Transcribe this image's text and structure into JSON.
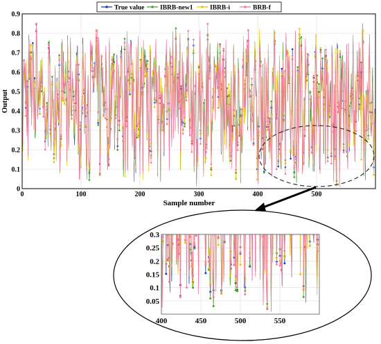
{
  "chart_data": [
    {
      "type": "line",
      "title": "",
      "xlabel": "Sample number",
      "ylabel": "Output",
      "xlim": [
        0,
        600
      ],
      "ylim": [
        0,
        0.9
      ],
      "xticks": [
        0,
        100,
        200,
        300,
        400,
        500
      ],
      "yticks": [
        0,
        0.1,
        0.2,
        0.3,
        0.4,
        0.5,
        0.6,
        0.7,
        0.8,
        0.9
      ],
      "xtick_labels": [
        "0",
        "100",
        "200",
        "300",
        "400",
        "500"
      ],
      "ytick_labels": [
        "0",
        "0.1",
        "0.2",
        "0.3",
        "0.4",
        "0.5",
        "0.6",
        "0.7",
        "0.8",
        "0.9"
      ],
      "grid": true,
      "legend": "top-center",
      "series": [
        {
          "name": "True value",
          "color": "#1f3fb5",
          "samples": [
            [
              0,
              0.22
            ],
            [
              24,
              0.81
            ],
            [
              58,
              0.2
            ],
            [
              110,
              0.07
            ],
            [
              145,
              0.13
            ],
            [
              178,
              0.78
            ],
            [
              205,
              0.09
            ],
            [
              262,
              0.69
            ],
            [
              296,
              0.02
            ],
            [
              315,
              0.79
            ],
            [
              410,
              0.18
            ],
            [
              440,
              0.12
            ],
            [
              476,
              0.09
            ],
            [
              505,
              0.1
            ],
            [
              534,
              0.02
            ],
            [
              578,
              0.82
            ],
            [
              598,
              0.28
            ]
          ]
        },
        {
          "name": "IBRB-new1",
          "color": "#4aa02c",
          "samples": [
            [
              10,
              0.6
            ],
            [
              50,
              0.66
            ],
            [
              100,
              0.74
            ],
            [
              150,
              0.7
            ],
            [
              200,
              0.77
            ],
            [
              250,
              0.7
            ],
            [
              300,
              0.72
            ],
            [
              350,
              0.76
            ],
            [
              400,
              0.74
            ],
            [
              450,
              0.7
            ],
            [
              500,
              0.72
            ],
            [
              550,
              0.76
            ],
            [
              590,
              0.76
            ]
          ]
        },
        {
          "name": "IBRB-i",
          "color": "#e6c800",
          "samples": [
            [
              5,
              0.18
            ],
            [
              40,
              0.14
            ],
            [
              90,
              0.16
            ],
            [
              140,
              0.15
            ],
            [
              190,
              0.12
            ],
            [
              240,
              0.18
            ],
            [
              290,
              0.13
            ],
            [
              340,
              0.17
            ],
            [
              390,
              0.13
            ],
            [
              430,
              0.11
            ],
            [
              470,
              0.13
            ],
            [
              520,
              0.17
            ],
            [
              570,
              0.16
            ]
          ]
        },
        {
          "name": "BRB-f",
          "color": "#f27aa6",
          "samples": [
            [
              15,
              0.3
            ],
            [
              65,
              0.67
            ],
            [
              120,
              0.24
            ],
            [
              170,
              0.68
            ],
            [
              220,
              0.26
            ],
            [
              270,
              0.66
            ],
            [
              320,
              0.24
            ],
            [
              370,
              0.7
            ],
            [
              420,
              0.24
            ],
            [
              460,
              0.1
            ],
            [
              510,
              0.26
            ],
            [
              560,
              0.68
            ],
            [
              595,
              0.2
            ]
          ]
        }
      ]
    },
    {
      "type": "line",
      "title": "",
      "xlim": [
        400,
        600
      ],
      "ylim": [
        0,
        0.3
      ],
      "xticks": [
        400,
        450,
        500,
        550
      ],
      "yticks": [
        0.05,
        0.1,
        0.15,
        0.2,
        0.25,
        0.3
      ],
      "xtick_labels": [
        "400",
        "450",
        "500",
        "550"
      ],
      "ytick_labels": [
        "0.05",
        "0.1",
        "0.15",
        "0.2",
        "0.25",
        "0.3"
      ],
      "grid": true,
      "series_ref": "zoomed view of samples 400-600 of the main chart",
      "notable_minima": [
        {
          "x": 408,
          "y": 0.26,
          "series": "True value"
        },
        {
          "x": 424,
          "y": 0.11,
          "series": "True value"
        },
        {
          "x": 432,
          "y": 0.1,
          "series": "BRB-f"
        },
        {
          "x": 447,
          "y": 0.11,
          "series": "True value"
        },
        {
          "x": 466,
          "y": 0.09,
          "series": "True value"
        },
        {
          "x": 479,
          "y": 0.12,
          "series": "BRB-f"
        },
        {
          "x": 487,
          "y": 0.13,
          "series": "True value"
        },
        {
          "x": 506,
          "y": 0.1,
          "series": "True value"
        },
        {
          "x": 529,
          "y": 0.09,
          "series": "True value"
        },
        {
          "x": 539,
          "y": 0.02,
          "series": "True value"
        },
        {
          "x": 576,
          "y": 0.15,
          "series": "IBRB-i"
        },
        {
          "x": 593,
          "y": 0.27,
          "series": "True value"
        },
        {
          "x": 597,
          "y": 0.11,
          "series": "True value"
        }
      ]
    }
  ]
}
